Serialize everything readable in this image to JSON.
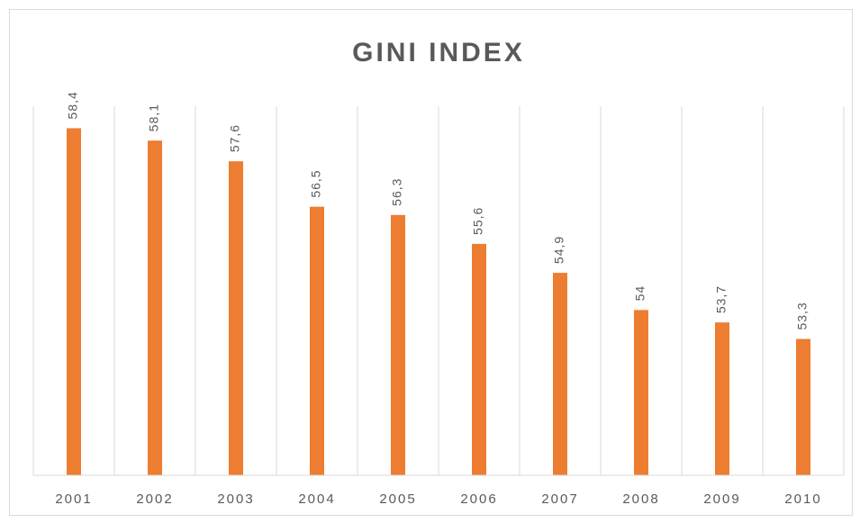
{
  "chart_data": {
    "type": "bar",
    "title": "GINI INDEX",
    "categories": [
      "2001",
      "2002",
      "2003",
      "2004",
      "2005",
      "2006",
      "2007",
      "2008",
      "2009",
      "2010"
    ],
    "values": [
      58.4,
      58.1,
      57.6,
      56.5,
      56.3,
      55.6,
      54.9,
      54,
      53.7,
      53.3
    ],
    "value_labels": [
      "58,4",
      "58,1",
      "57,6",
      "56,5",
      "56,3",
      "55,6",
      "54,9",
      "54",
      "53,7",
      "53,3"
    ],
    "color": "#ed7d31",
    "ylim": [
      50,
      60
    ]
  }
}
